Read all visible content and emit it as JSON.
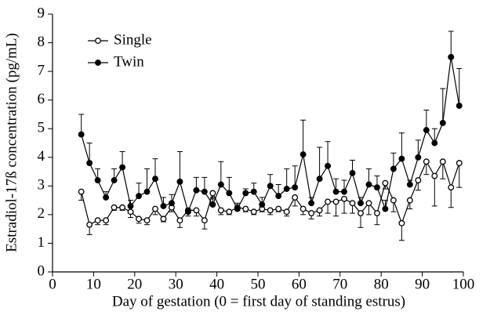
{
  "chart_data": {
    "type": "line",
    "xlabel": "Day of gestation (0 = first day of standing estrus)",
    "ylabel": "Estradiol-17ß concentration (pg/mL)",
    "x": [
      7,
      9,
      11,
      13,
      15,
      17,
      19,
      21,
      23,
      25,
      27,
      29,
      31,
      33,
      35,
      37,
      39,
      41,
      43,
      45,
      47,
      49,
      51,
      53,
      55,
      57,
      59,
      61,
      63,
      65,
      67,
      69,
      71,
      73,
      75,
      77,
      79,
      81,
      83,
      85,
      87,
      89,
      91,
      93,
      95,
      97,
      99
    ],
    "series": [
      {
        "name": "Single",
        "color": "#000000",
        "marker": "open",
        "error_direction": "down",
        "values": [
          2.8,
          1.65,
          1.8,
          1.8,
          2.25,
          2.25,
          2.1,
          1.85,
          1.8,
          2.2,
          1.85,
          2.25,
          1.8,
          2.15,
          2.15,
          1.8,
          2.75,
          2.15,
          2.1,
          2.25,
          2.2,
          2.1,
          2.2,
          2.15,
          2.2,
          2.1,
          2.6,
          2.2,
          2.05,
          2.15,
          2.45,
          2.45,
          2.55,
          2.4,
          2.05,
          2.4,
          2.05,
          3.1,
          2.5,
          1.7,
          2.5,
          3.2,
          3.85,
          3.35,
          3.85,
          2.95,
          3.8
        ],
        "errors": [
          0.3,
          0.35,
          0.15,
          0.15,
          0.1,
          0.1,
          0.2,
          0.15,
          0.15,
          0.2,
          0.1,
          0.15,
          0.25,
          0.2,
          0.2,
          0.3,
          0.2,
          0.15,
          0.1,
          0.1,
          0.1,
          0.1,
          0.1,
          0.15,
          0.1,
          0.15,
          0.3,
          0.2,
          0.2,
          0.2,
          0.4,
          0.5,
          0.5,
          0.35,
          0.5,
          0.4,
          0.4,
          0.2,
          0.4,
          0.6,
          0.3,
          0.35,
          0.45,
          1.05,
          0.6,
          0.7,
          0.85
        ]
      },
      {
        "name": "Twin",
        "color": "#000000",
        "marker": "filled",
        "error_direction": "up",
        "values": [
          4.8,
          3.8,
          3.2,
          2.6,
          3.2,
          3.65,
          2.3,
          2.65,
          2.8,
          3.25,
          2.3,
          2.4,
          3.15,
          2.1,
          2.85,
          2.8,
          2.35,
          3.05,
          2.75,
          2.2,
          2.75,
          2.8,
          2.35,
          3.0,
          2.65,
          2.9,
          2.95,
          4.1,
          2.4,
          3.25,
          3.7,
          2.8,
          2.8,
          3.45,
          2.4,
          3.05,
          2.95,
          2.2,
          3.6,
          3.95,
          3.05,
          4.0,
          4.95,
          4.5,
          5.2,
          7.5,
          5.8
        ],
        "errors": [
          0.7,
          0.7,
          0.4,
          0.2,
          0.4,
          0.55,
          0.2,
          0.45,
          0.8,
          0.7,
          0.3,
          0.3,
          1.05,
          0.1,
          0.45,
          0.5,
          0.25,
          0.8,
          0.55,
          0.2,
          0.15,
          0.3,
          0.25,
          0.4,
          0.4,
          0.7,
          0.75,
          1.2,
          0.2,
          1.1,
          0.85,
          0.45,
          0.4,
          0.45,
          0.2,
          0.55,
          0.4,
          0.3,
          0.55,
          0.9,
          0.15,
          0.6,
          0.7,
          0.5,
          1.2,
          0.9,
          1.3
        ]
      }
    ],
    "xlim": [
      0,
      100
    ],
    "xticks": [
      0,
      10,
      20,
      30,
      40,
      50,
      60,
      70,
      80,
      90,
      100
    ],
    "ylim": [
      0,
      9
    ],
    "yticks": [
      0,
      1,
      2,
      3,
      4,
      5,
      6,
      7,
      8,
      9
    ],
    "legend": "upper left"
  }
}
